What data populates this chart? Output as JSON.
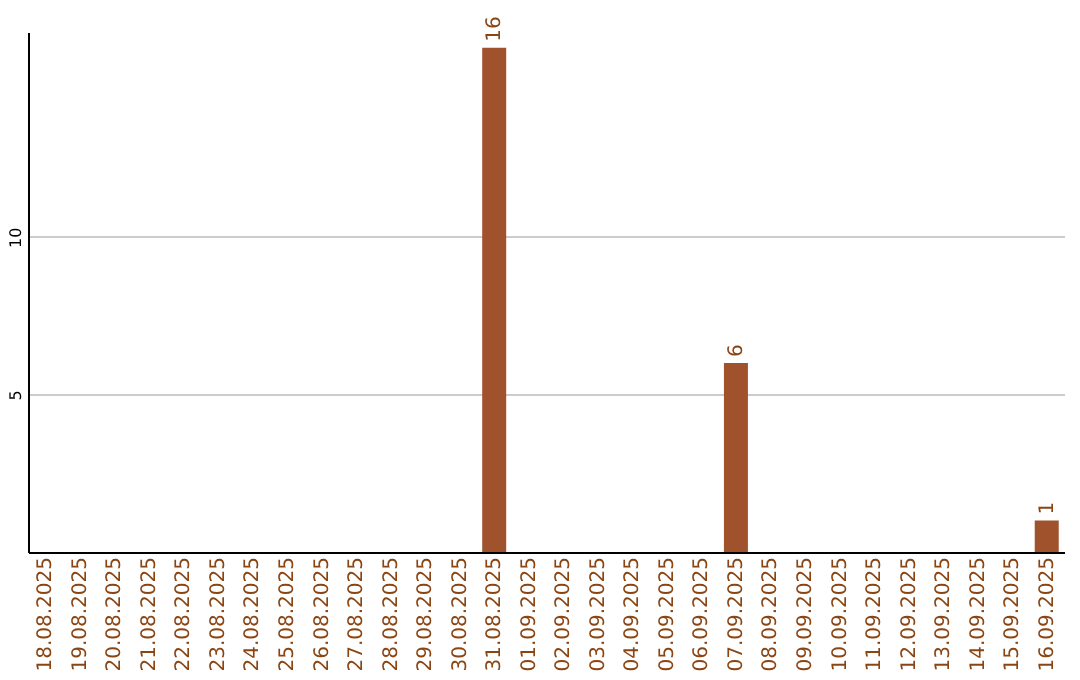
{
  "chart_data": {
    "type": "bar",
    "categories": [
      "18.08.2025",
      "19.08.2025",
      "20.08.2025",
      "21.08.2025",
      "22.08.2025",
      "23.08.2025",
      "24.08.2025",
      "25.08.2025",
      "26.08.2025",
      "27.08.2025",
      "28.08.2025",
      "29.08.2025",
      "30.08.2025",
      "31.08.2025",
      "01.09.2025",
      "02.09.2025",
      "03.09.2025",
      "04.09.2025",
      "05.09.2025",
      "06.09.2025",
      "07.09.2025",
      "08.09.2025",
      "09.09.2025",
      "10.09.2025",
      "11.09.2025",
      "12.09.2025",
      "13.09.2025",
      "14.09.2025",
      "15.09.2025",
      "16.09.2025"
    ],
    "values": [
      0,
      0,
      0,
      0,
      0,
      0,
      0,
      0,
      0,
      0,
      0,
      0,
      0,
      16,
      0,
      0,
      0,
      0,
      0,
      0,
      6,
      0,
      0,
      0,
      0,
      0,
      0,
      0,
      0,
      1
    ],
    "value_labels": [
      null,
      null,
      null,
      null,
      null,
      null,
      null,
      null,
      null,
      null,
      null,
      null,
      null,
      "16",
      null,
      null,
      null,
      null,
      null,
      null,
      "6",
      null,
      null,
      null,
      null,
      null,
      null,
      null,
      null,
      "1"
    ],
    "color": "#a0522d",
    "ylim": [
      0,
      16.5
    ],
    "yticks": [
      5,
      10
    ],
    "grid": "y"
  }
}
